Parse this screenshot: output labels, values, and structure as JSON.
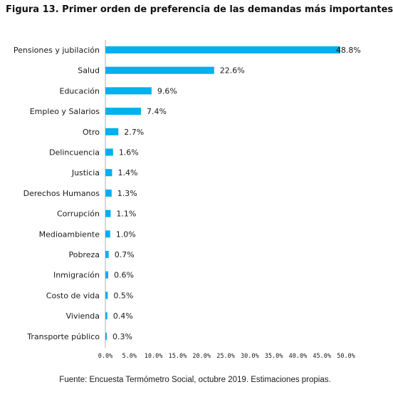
{
  "figure": {
    "title": "Figura 13. Primer orden de preferencia de las demandas más importantes",
    "source": "Fuente: Encuesta Termómetro Social, octubre 2019. Estimaciones propias."
  },
  "chart_data": {
    "type": "bar",
    "orientation": "horizontal",
    "title": "Figura 13. Primer orden de preferencia de las demandas más importantes",
    "xlabel": "",
    "ylabel": "",
    "categories": [
      "Pensiones y jubilación",
      "Salud",
      "Educación",
      "Empleo y Salarios",
      "Otro",
      "Delincuencia",
      "Justicia",
      "Derechos Humanos",
      "Corrupción",
      "Medioambiente",
      "Pobreza",
      "Inmigración",
      "Costo de vida",
      "Vivienda",
      "Transporte público"
    ],
    "values": [
      48.8,
      22.6,
      9.6,
      7.4,
      2.7,
      1.6,
      1.4,
      1.3,
      1.1,
      1.0,
      0.7,
      0.6,
      0.5,
      0.4,
      0.3
    ],
    "value_labels": [
      "48.8%",
      "22.6%",
      "9.6%",
      "7.4%",
      "2.7%",
      "1.6%",
      "1.4%",
      "1.3%",
      "1.1%",
      "1.0%",
      "0.7%",
      "0.6%",
      "0.5%",
      "0.4%",
      "0.3%"
    ],
    "x_ticks": [
      0,
      5,
      10,
      15,
      20,
      25,
      30,
      35,
      40,
      45,
      50
    ],
    "x_tick_labels": [
      "0.0%",
      "5.0%",
      "10.0%",
      "15.0%",
      "20.0%",
      "25.0%",
      "30.0%",
      "35.0%",
      "40.0%",
      "45.0%",
      "50.0%"
    ],
    "xlim": [
      0,
      50
    ],
    "grid": false,
    "legend": "none",
    "bar_color": "#00B0F0"
  }
}
